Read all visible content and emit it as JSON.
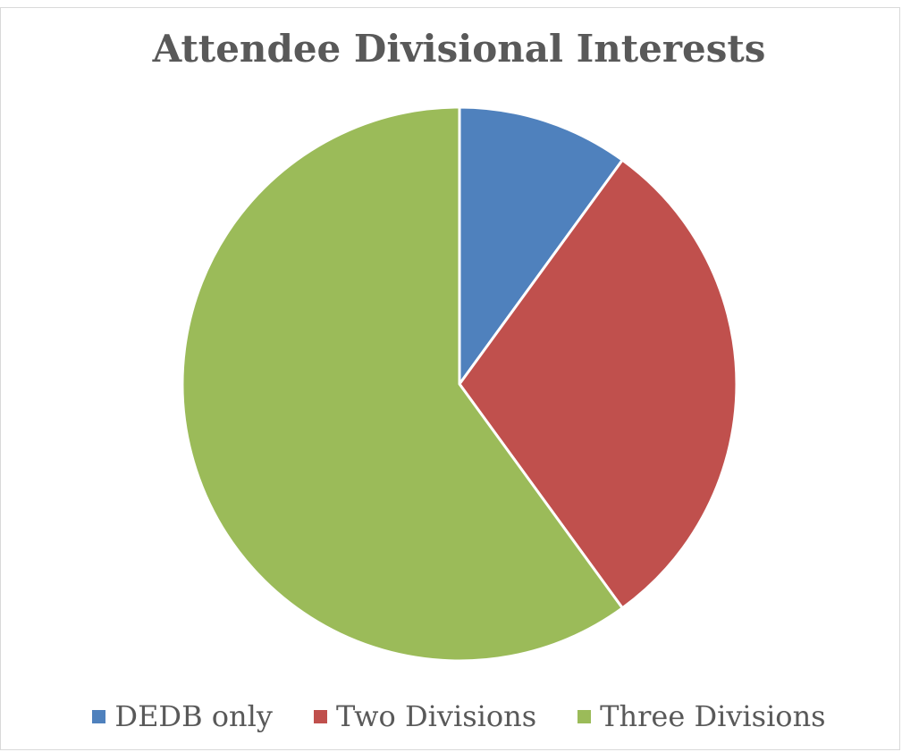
{
  "chart_data": {
    "type": "pie",
    "title": "Attendee Divisional Interests",
    "categories": [
      "DEDB only",
      "Two Divisions",
      "Three Divisions"
    ],
    "values": [
      10,
      30,
      60
    ],
    "colors": [
      "#4f81bd",
      "#c0504d",
      "#9bbb59"
    ],
    "legend_position": "bottom",
    "start_angle": "top (12 o'clock), clockwise"
  }
}
